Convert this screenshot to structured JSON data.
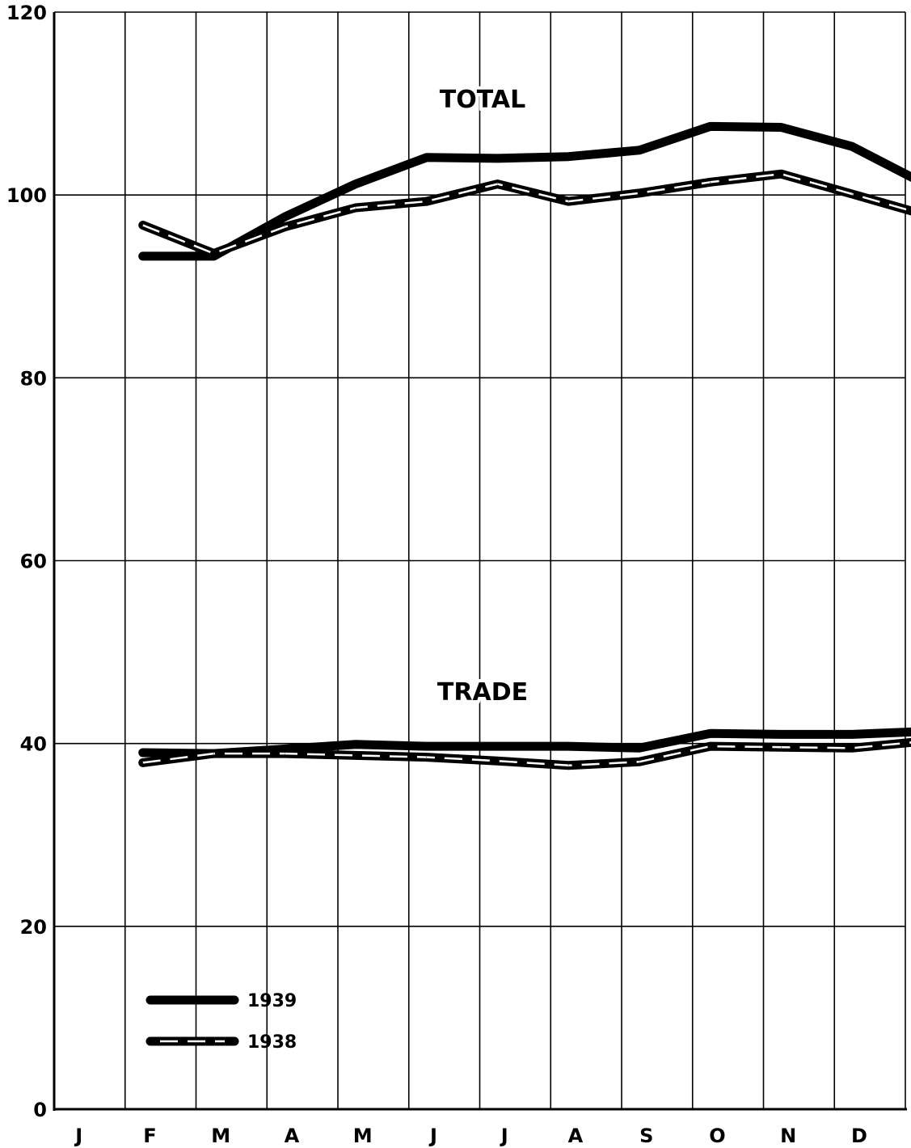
{
  "chart_data": {
    "type": "line",
    "title": "",
    "xlabel": "",
    "ylabel": "",
    "categories": [
      "J",
      "F",
      "M",
      "A",
      "M",
      "J",
      "J",
      "A",
      "S",
      "O",
      "N",
      "D"
    ],
    "ylim": [
      0,
      120
    ],
    "yticks": [
      "0",
      "20",
      "40",
      "60",
      "80",
      "100",
      "120"
    ],
    "grid": true,
    "annotations": [
      {
        "text": "TOTAL",
        "group": "total"
      },
      {
        "text": "TRADE",
        "group": "trade"
      }
    ],
    "legend": {
      "placement": "bottom-left",
      "entries": [
        {
          "label": "1939",
          "style": "solid"
        },
        {
          "label": "1938",
          "style": "white-dashed"
        }
      ]
    },
    "series": [
      {
        "name": "1939",
        "group": "total",
        "style": "solid",
        "x": [
          1.25,
          2.25,
          3.25,
          4.25,
          5.25,
          6.25,
          7.25,
          8.25,
          9.25,
          10.25,
          11.25,
          12.2
        ],
        "values": [
          93.3,
          93.3,
          97.6,
          101.2,
          104.1,
          104.0,
          104.2,
          104.9,
          107.5,
          107.4,
          105.3,
          101.5
        ]
      },
      {
        "name": "1938",
        "group": "total",
        "style": "white-dashed",
        "x": [
          1.25,
          2.25,
          3.25,
          4.25,
          5.25,
          6.25,
          7.25,
          8.25,
          9.25,
          10.25,
          11.25,
          12.2
        ],
        "values": [
          96.7,
          93.6,
          96.5,
          98.6,
          99.3,
          101.2,
          99.3,
          100.2,
          101.4,
          102.3,
          100.1,
          98.0
        ]
      },
      {
        "name": "1939",
        "group": "trade",
        "style": "solid",
        "x": [
          1.25,
          2.25,
          3.25,
          4.25,
          5.25,
          6.25,
          7.25,
          8.25,
          9.25,
          10.25,
          11.25,
          12.2
        ],
        "values": [
          39.0,
          38.9,
          39.4,
          39.9,
          39.7,
          39.7,
          39.7,
          39.5,
          41.1,
          41.0,
          41.0,
          41.3
        ]
      },
      {
        "name": "1938",
        "group": "trade",
        "style": "white-dashed",
        "x": [
          1.25,
          2.25,
          3.25,
          4.25,
          5.25,
          6.25,
          7.25,
          8.25,
          9.25,
          10.25,
          11.25,
          12.2
        ],
        "values": [
          37.9,
          38.9,
          38.9,
          38.7,
          38.5,
          38.1,
          37.6,
          38.0,
          39.7,
          39.6,
          39.5,
          40.2
        ]
      }
    ]
  }
}
